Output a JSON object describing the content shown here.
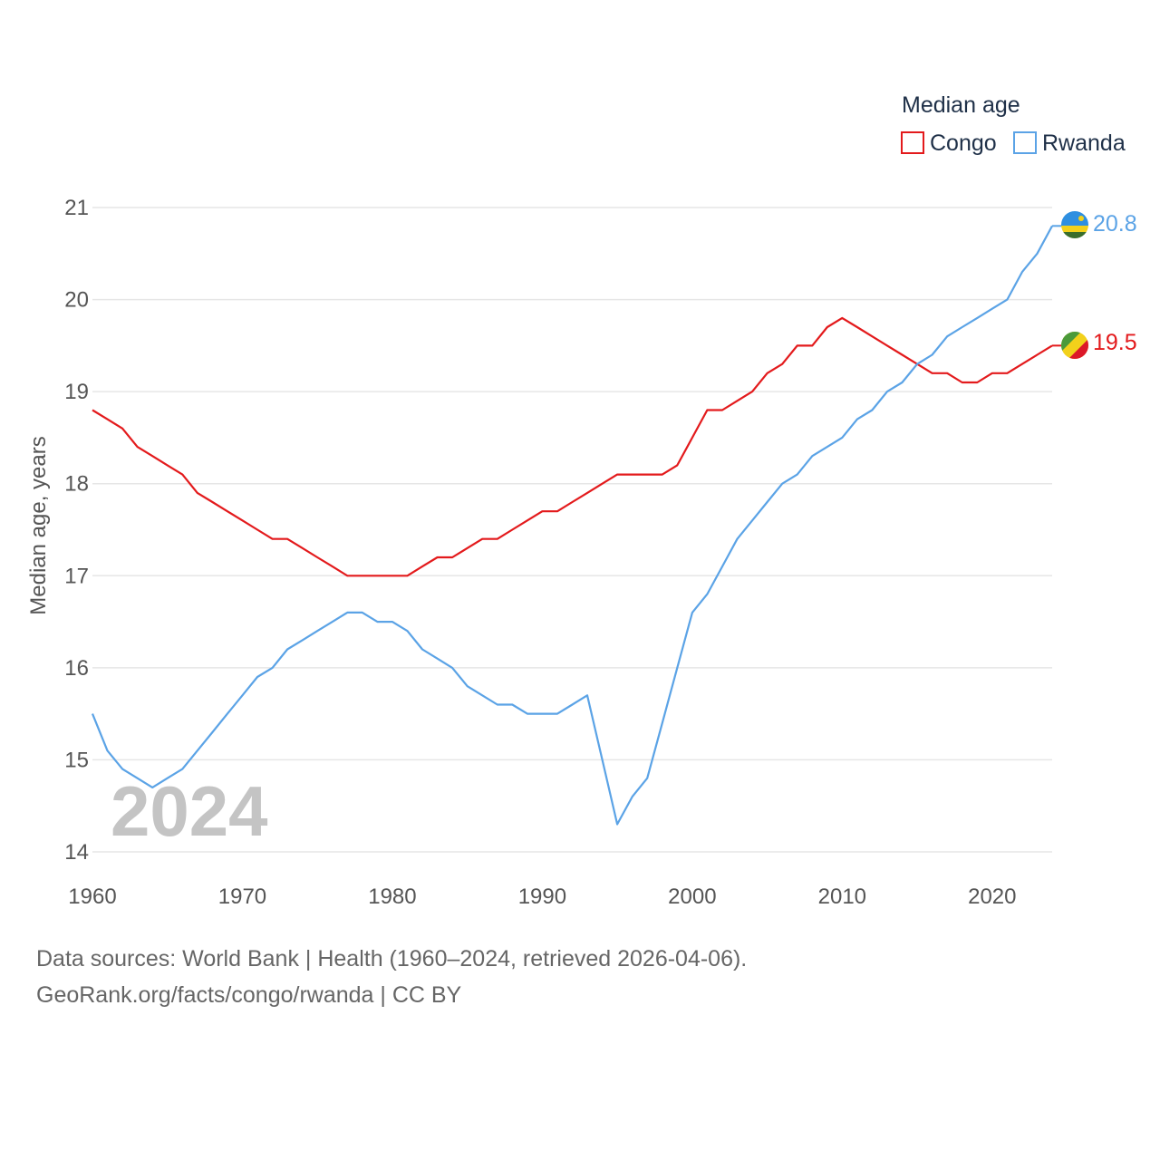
{
  "chart_data": {
    "type": "line",
    "title": "",
    "ylabel": "Median age, years",
    "xlabel": "",
    "xlim": [
      1960,
      2024
    ],
    "ylim": [
      14,
      21
    ],
    "x_ticks": [
      "1960",
      "1970",
      "1980",
      "1990",
      "2000",
      "2010",
      "2020"
    ],
    "y_ticks": [
      "14",
      "15",
      "16",
      "17",
      "18",
      "19",
      "20",
      "21"
    ],
    "current_year": "2024",
    "legend": {
      "title": "Median age",
      "position": "top-right"
    },
    "series": [
      {
        "name": "Congo",
        "color": "#e31a1c",
        "end_label": "19.5",
        "flag_icon": "congo-flag-icon",
        "x": [
          1960,
          1961,
          1962,
          1963,
          1964,
          1965,
          1966,
          1967,
          1968,
          1969,
          1970,
          1971,
          1972,
          1973,
          1974,
          1975,
          1976,
          1977,
          1978,
          1979,
          1980,
          1981,
          1982,
          1983,
          1984,
          1985,
          1986,
          1987,
          1988,
          1989,
          1990,
          1991,
          1992,
          1993,
          1994,
          1995,
          1996,
          1997,
          1998,
          1999,
          2000,
          2001,
          2002,
          2003,
          2004,
          2005,
          2006,
          2007,
          2008,
          2009,
          2010,
          2011,
          2012,
          2013,
          2014,
          2015,
          2016,
          2017,
          2018,
          2019,
          2020,
          2021,
          2022,
          2023,
          2024
        ],
        "values": [
          18.8,
          18.7,
          18.6,
          18.4,
          18.3,
          18.2,
          18.1,
          17.9,
          17.8,
          17.7,
          17.6,
          17.5,
          17.4,
          17.4,
          17.3,
          17.2,
          17.1,
          17.0,
          17.0,
          17.0,
          17.0,
          17.0,
          17.1,
          17.2,
          17.2,
          17.3,
          17.4,
          17.4,
          17.5,
          17.6,
          17.7,
          17.7,
          17.8,
          17.9,
          18.0,
          18.1,
          18.1,
          18.1,
          18.1,
          18.2,
          18.5,
          18.8,
          18.8,
          18.9,
          19.0,
          19.2,
          19.3,
          19.5,
          19.5,
          19.7,
          19.8,
          19.7,
          19.6,
          19.5,
          19.4,
          19.3,
          19.2,
          19.2,
          19.1,
          19.1,
          19.2,
          19.2,
          19.3,
          19.4,
          19.5
        ]
      },
      {
        "name": "Rwanda",
        "color": "#5ba3e6",
        "end_label": "20.8",
        "flag_icon": "rwanda-flag-icon",
        "x": [
          1960,
          1961,
          1962,
          1963,
          1964,
          1965,
          1966,
          1967,
          1968,
          1969,
          1970,
          1971,
          1972,
          1973,
          1974,
          1975,
          1976,
          1977,
          1978,
          1979,
          1980,
          1981,
          1982,
          1983,
          1984,
          1985,
          1986,
          1987,
          1988,
          1989,
          1990,
          1991,
          1992,
          1993,
          1994,
          1995,
          1996,
          1997,
          1998,
          1999,
          2000,
          2001,
          2002,
          2003,
          2004,
          2005,
          2006,
          2007,
          2008,
          2009,
          2010,
          2011,
          2012,
          2013,
          2014,
          2015,
          2016,
          2017,
          2018,
          2019,
          2020,
          2021,
          2022,
          2023,
          2024
        ],
        "values": [
          15.5,
          15.1,
          14.9,
          14.8,
          14.7,
          14.8,
          14.9,
          15.1,
          15.3,
          15.5,
          15.7,
          15.9,
          16.0,
          16.2,
          16.3,
          16.4,
          16.5,
          16.6,
          16.6,
          16.5,
          16.5,
          16.4,
          16.2,
          16.1,
          16.0,
          15.8,
          15.7,
          15.6,
          15.6,
          15.5,
          15.5,
          15.5,
          15.6,
          15.7,
          15.0,
          14.3,
          14.6,
          14.8,
          15.4,
          16.0,
          16.6,
          16.8,
          17.1,
          17.4,
          17.6,
          17.8,
          18.0,
          18.1,
          18.3,
          18.4,
          18.5,
          18.7,
          18.8,
          19.0,
          19.1,
          19.3,
          19.4,
          19.6,
          19.7,
          19.8,
          19.9,
          20.0,
          20.3,
          20.5,
          20.8
        ]
      }
    ]
  },
  "footer": {
    "source_line_1": "Data sources: World Bank | Health (1960–2024, retrieved 2026-04-06).",
    "source_line_2": "GeoRank.org/facts/congo/rwanda | CC BY"
  }
}
